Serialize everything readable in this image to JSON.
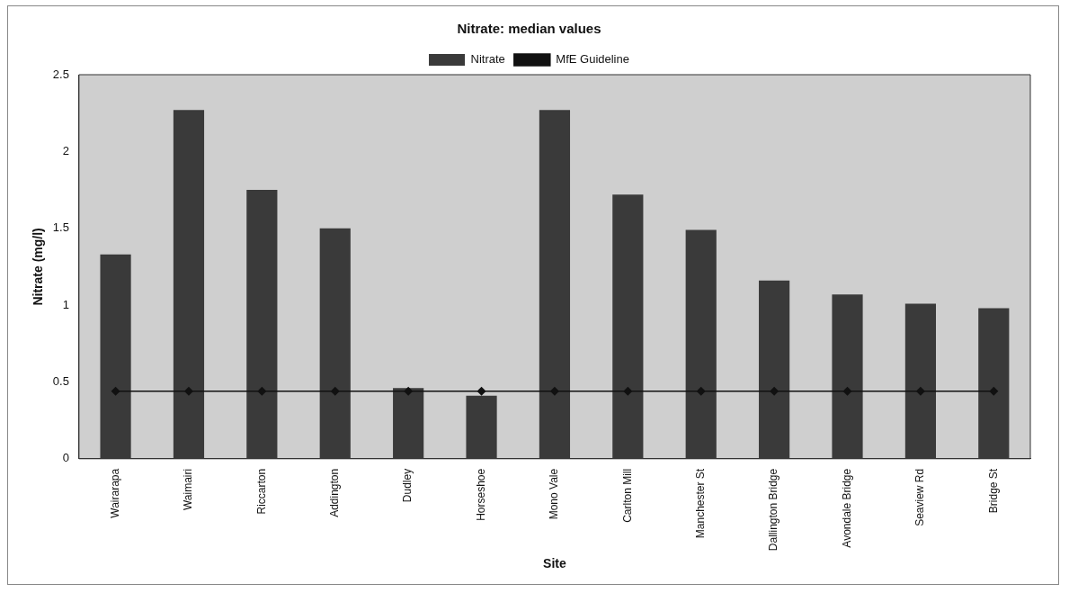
{
  "chart_data": {
    "type": "bar",
    "title": "Nitrate: median values",
    "xlabel": "Site",
    "ylabel": "Nitrate (mg/l)",
    "categories": [
      "Wairarapa",
      "Waimairi",
      "Riccarton",
      "Addington",
      "Dudley",
      "Horseshoe",
      "Mono Vale",
      "Carlton Mill",
      "Manchester St",
      "Dallington Bridge",
      "Avondale Bridge",
      "Seaview Rd",
      "Bridge St"
    ],
    "series": [
      {
        "name": "Nitrate",
        "color": "#3a3a3a",
        "values": [
          1.33,
          2.27,
          1.75,
          1.5,
          0.46,
          0.41,
          2.27,
          1.72,
          1.49,
          1.16,
          1.07,
          1.01,
          0.98
        ]
      },
      {
        "name": "MfE Guideline",
        "type": "line",
        "color": "#111111",
        "marker": "diamond",
        "values": [
          0.44,
          0.44,
          0.44,
          0.44,
          0.44,
          0.44,
          0.44,
          0.44,
          0.44,
          0.44,
          0.44,
          0.44,
          0.44
        ]
      }
    ],
    "ylim": [
      0,
      2.5
    ],
    "yticks": [
      0,
      0.5,
      1,
      1.5,
      2,
      2.5
    ],
    "grid": false,
    "legend": "top"
  }
}
